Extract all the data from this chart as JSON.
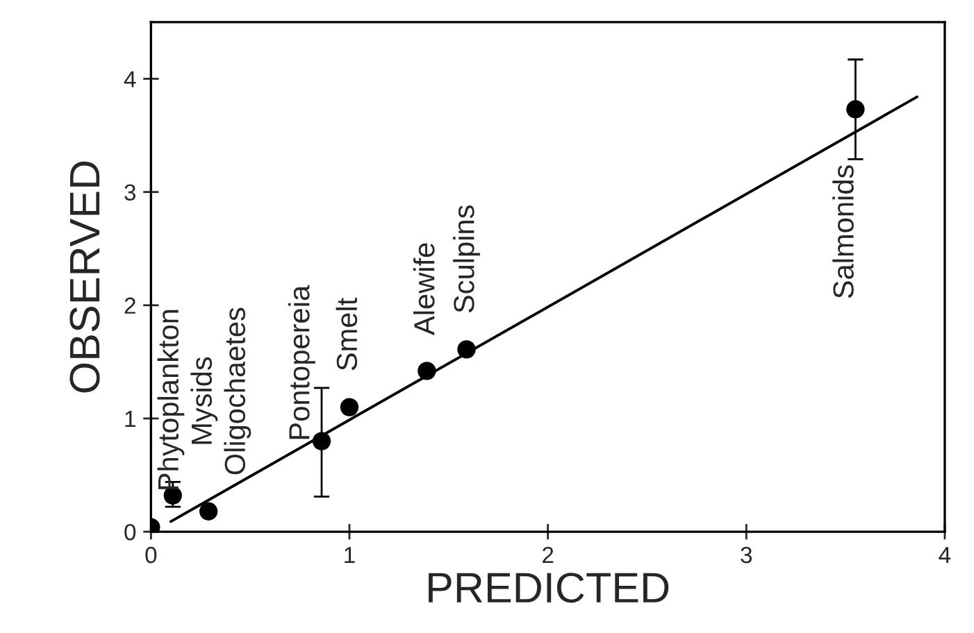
{
  "chart_data": {
    "type": "scatter",
    "xlabel": "PREDICTED",
    "ylabel": "OBSERVED",
    "series": [
      {
        "color": "#000000",
        "marker": "circle",
        "x": [
          0,
          0.11,
          0.29,
          0.86,
          1.0,
          1.39,
          1.59,
          3.55
        ],
        "values": [
          0.04,
          0.32,
          0.18,
          0.8,
          1.1,
          1.42,
          1.61,
          3.73
        ],
        "errors": [
          null,
          [
            0.22,
            0.44
          ],
          null,
          [
            0.31,
            1.27
          ],
          null,
          null,
          null,
          [
            3.29,
            4.17
          ]
        ]
      },
      {
        "type": "line",
        "marker": "none",
        "line_style": "solid",
        "color": "#000000",
        "x": [
          0.1,
          3.86
        ],
        "values": [
          0.09,
          3.84
        ]
      }
    ],
    "annotations": [
      {
        "text": "Phytoplankton",
        "x": 0,
        "y": 0.04
      },
      {
        "text": "Mysids",
        "x": 0.11,
        "y": 0.32
      },
      {
        "text": "Oligochaetes",
        "x": 0.29,
        "y": 0.18
      },
      {
        "text": "Pontopereia",
        "x": 0.86,
        "y": 0.8
      },
      {
        "text": "Smelt",
        "x": 1.0,
        "y": 1.1
      },
      {
        "text": "Alewife",
        "x": 1.39,
        "y": 1.42
      },
      {
        "text": "Sculpins",
        "x": 1.59,
        "y": 1.61
      },
      {
        "text": "Salmonids",
        "x": 3.55,
        "y": 3.29
      }
    ],
    "xlim": [
      0,
      4
    ],
    "ylim": [
      0,
      4.5
    ],
    "xticks": [
      0,
      1,
      2,
      3,
      4
    ],
    "yticks": [
      0,
      1,
      2,
      3,
      4
    ],
    "grid": false,
    "legend": false
  }
}
